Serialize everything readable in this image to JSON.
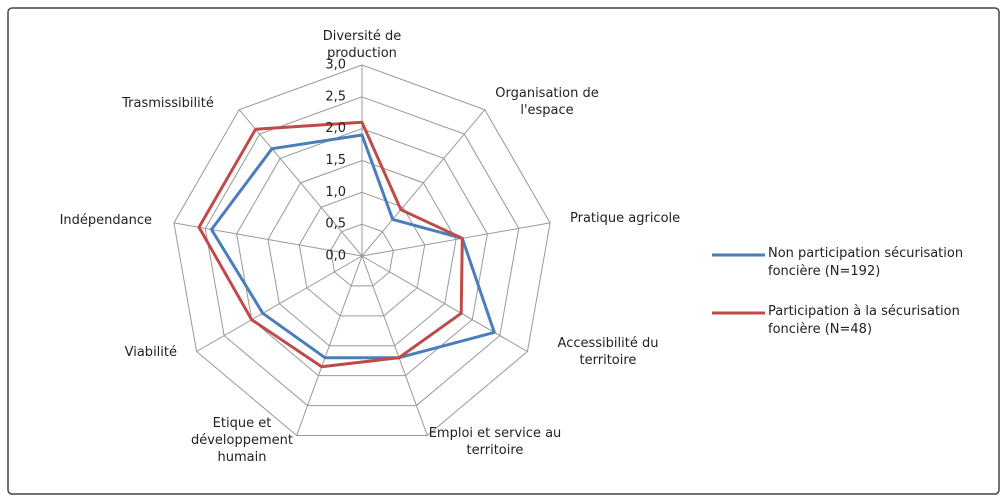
{
  "chart_data": {
    "type": "radar",
    "categories": [
      "Diversité de production",
      "Organisation de l'espace",
      "Pratique agricole",
      "Accessibilité du territoire",
      "Emploi et service au territoire",
      "Etique et développement humain",
      "Viabilité",
      "Indépendance",
      "Trasmissibilité"
    ],
    "series": [
      {
        "name": "Non participation sécurisation foncière (N=192)",
        "color": "#4a7ebb",
        "values": [
          1.9,
          0.75,
          1.6,
          2.4,
          1.7,
          1.7,
          1.8,
          2.4,
          2.2
        ]
      },
      {
        "name": "Participation à la sécurisation foncière (N=48)",
        "color": "#be4b48",
        "values": [
          2.1,
          0.95,
          1.6,
          1.8,
          1.7,
          1.85,
          2.0,
          2.6,
          2.6
        ]
      }
    ],
    "ylim": [
      0,
      3
    ],
    "yticks": [
      {
        "value": 0,
        "label": "0,0"
      },
      {
        "value": 0.5,
        "label": "0,5"
      },
      {
        "value": 1,
        "label": "1,0"
      },
      {
        "value": 1.5,
        "label": "1,5"
      },
      {
        "value": 2,
        "label": "2,0"
      },
      {
        "value": 2.5,
        "label": "2,5"
      },
      {
        "value": 3,
        "label": "3,0"
      }
    ],
    "grid": true,
    "legend": "right"
  }
}
